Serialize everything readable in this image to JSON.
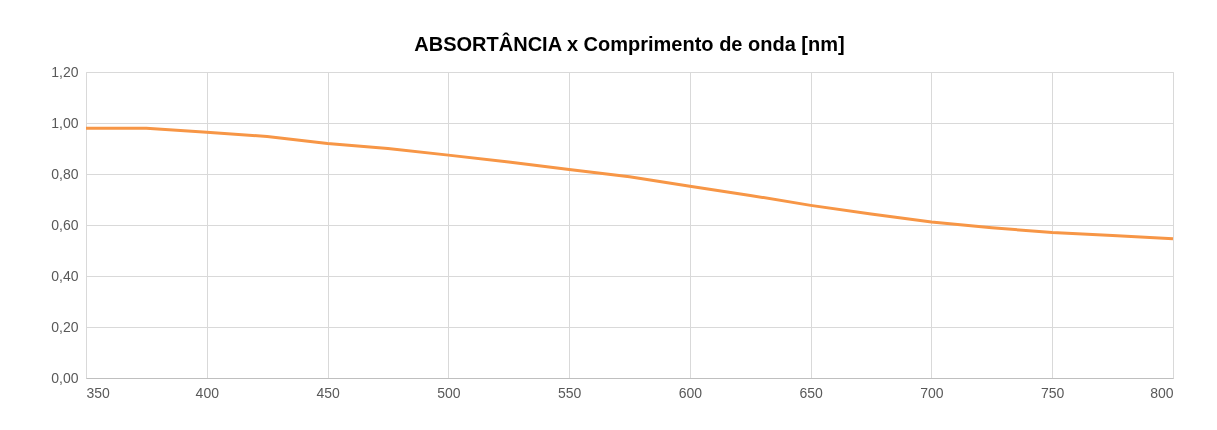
{
  "chart_data": {
    "type": "line",
    "title": "ABSORTÂNCIA  x  Comprimento de onda [nm]",
    "x": [
      350,
      375,
      400,
      425,
      450,
      475,
      500,
      525,
      550,
      575,
      600,
      625,
      650,
      675,
      700,
      725,
      750,
      775,
      800
    ],
    "series": [
      {
        "color": "#f79646",
        "values": [
          0.979,
          0.979,
          0.964,
          0.947,
          0.92,
          0.9,
          0.874,
          0.847,
          0.818,
          0.789,
          0.752,
          0.716,
          0.677,
          0.643,
          0.612,
          0.589,
          0.571,
          0.559,
          0.546
        ]
      }
    ],
    "xlim": [
      350,
      800
    ],
    "xticks": [
      350,
      400,
      450,
      500,
      550,
      600,
      650,
      700,
      750,
      800
    ],
    "ylim": [
      0,
      1.2
    ],
    "yticks": [
      {
        "value": 0,
        "label": "0,00"
      },
      {
        "value": 0.2,
        "label": "0,20"
      },
      {
        "value": 0.4,
        "label": "0,40"
      },
      {
        "value": 0.6,
        "label": "0,60"
      },
      {
        "value": 0.8,
        "label": "0,80"
      },
      {
        "value": 1.0,
        "label": "1,00"
      },
      {
        "value": 1.2,
        "label": "1,20"
      }
    ],
    "grid": true,
    "marker": "none",
    "line_style": "solid"
  }
}
